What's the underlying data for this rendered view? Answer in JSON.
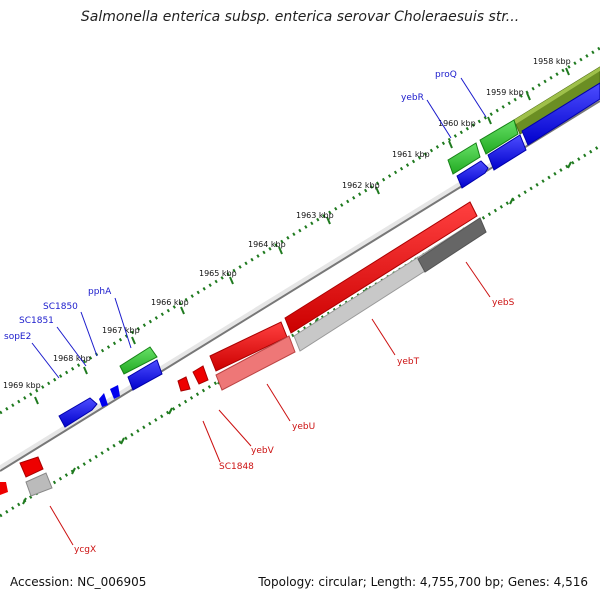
{
  "title": "Salmonella enterica subsp. enterica serovar Choleraesuis str...",
  "footer": {
    "accession": "Accession: NC_006905",
    "stats": "Topology: circular; Length: 4,755,700 bp; Genes: 4,516"
  },
  "kbp_ticks": [
    "1958 kbp",
    "1959 kbp",
    "1960 kbp",
    "1961 kbp",
    "1962 kbp",
    "1963 kbp",
    "1964 kbp",
    "1965 kbp",
    "1966 kbp",
    "1967 kbp",
    "1968 kbp",
    "1969 kbp"
  ],
  "upper_labels": [
    "proQ",
    "yebR",
    "pphA",
    "SC1850",
    "SC1851",
    "sopE2"
  ],
  "lower_labels": [
    "yebS",
    "yebT",
    "yebU",
    "yebV",
    "SC1848",
    "ycgX"
  ],
  "colors": {
    "forward_gene": "#0000ee",
    "hit_gene": "#22cc22",
    "reverse_gene": "#ee0000",
    "pseudo_gene": "#bbbbbb",
    "olive_gene": "#6b8e23",
    "backbone": "#777777",
    "tick": "#1f7a1f"
  }
}
